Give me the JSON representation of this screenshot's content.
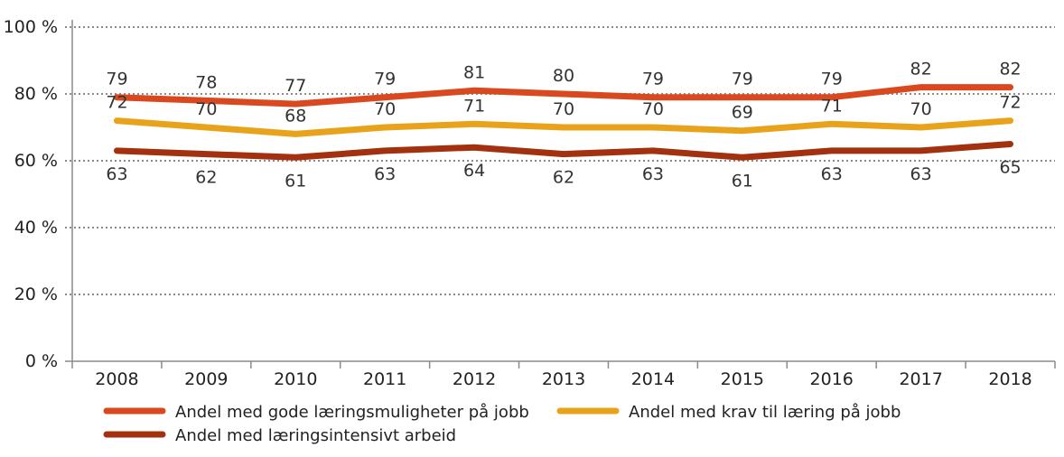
{
  "chart_data": {
    "type": "line",
    "categories": [
      "2008",
      "2009",
      "2010",
      "2011",
      "2012",
      "2013",
      "2014",
      "2015",
      "2016",
      "2017",
      "2018"
    ],
    "ylim": [
      0,
      100
    ],
    "yticks": [
      0,
      20,
      40,
      60,
      80,
      100
    ],
    "ytick_labels": [
      "0 %",
      "20 %",
      "40 %",
      "60 %",
      "80 %",
      "100 %"
    ],
    "grid": true,
    "legend_position": "bottom",
    "series": [
      {
        "name": "Andel med gode læringsmuligheter på jobb",
        "color": "#d9481f",
        "values": [
          79,
          78,
          77,
          79,
          81,
          80,
          79,
          79,
          79,
          82,
          82
        ],
        "label_position": "above"
      },
      {
        "name": "Andel med krav til læring på jobb",
        "color": "#e8a31b",
        "values": [
          72,
          70,
          68,
          70,
          71,
          70,
          70,
          69,
          71,
          70,
          72
        ],
        "label_position": "above"
      },
      {
        "name": "Andel med læringsintensivt arbeid",
        "color": "#a3300f",
        "values": [
          63,
          62,
          61,
          63,
          64,
          62,
          63,
          61,
          63,
          63,
          65
        ],
        "label_position": "below"
      }
    ]
  }
}
